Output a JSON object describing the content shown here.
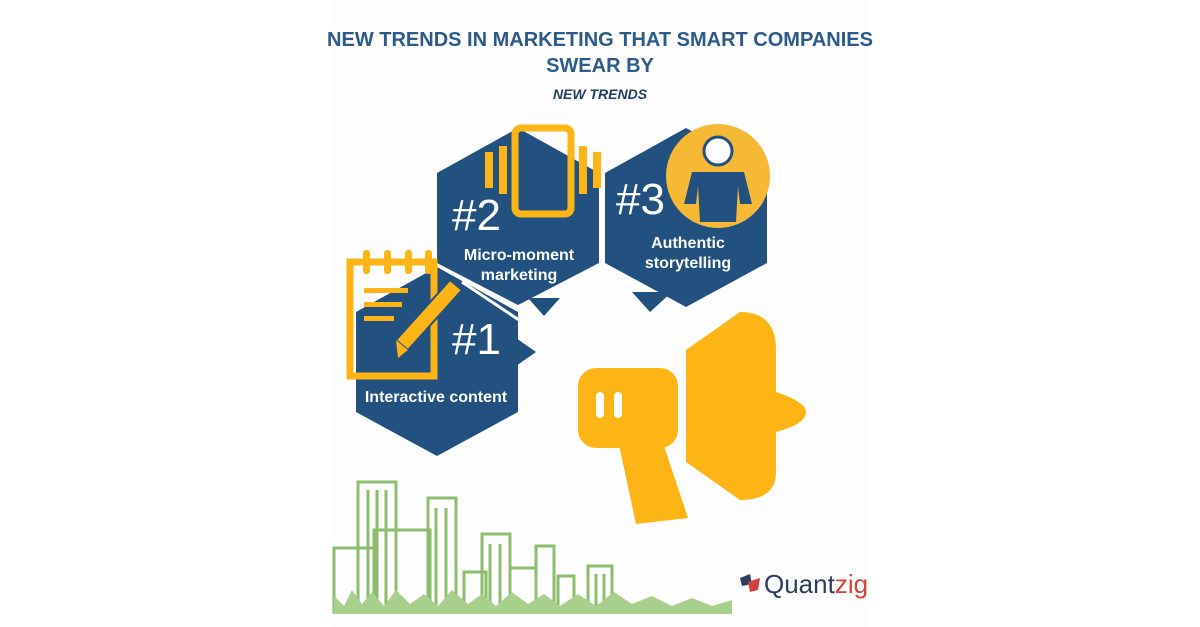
{
  "title_line1": "NEW TRENDS IN MARKETING THAT SMART COMPANIES",
  "title_line2": "SWEAR BY",
  "subtitle": "NEW TRENDS",
  "trends": [
    {
      "number": "#1",
      "label_line1": "Interactive content",
      "label_line2": ""
    },
    {
      "number": "#2",
      "label_line1": "Micro-moment",
      "label_line2": "marketing"
    },
    {
      "number": "#3",
      "label_line1": "Authentic",
      "label_line2": "storytelling"
    }
  ],
  "logo": {
    "part1": "Quant",
    "part2": "zig"
  },
  "colors": {
    "hexagon": "#22507f",
    "accent_yellow": "#fcb515",
    "city_green": "#8dbd6c",
    "title_blue": "#2d5a8a",
    "logo_red": "#d2413a"
  },
  "icons": [
    "notepad-pencil-icon",
    "vibrating-phone-icon",
    "person-icon",
    "megaphone-icon",
    "city-skyline",
    "quantzig-logo-icon"
  ]
}
